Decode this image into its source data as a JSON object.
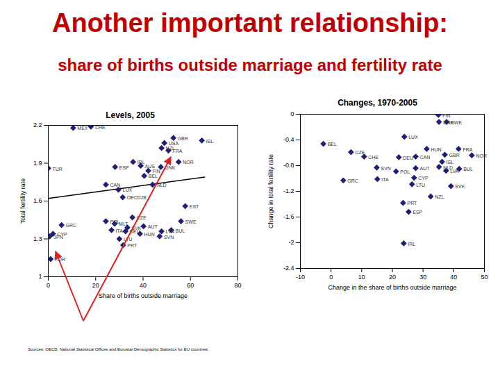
{
  "title": "Another important relationship:",
  "subtitle": "share of births outside marriage and fertility rate",
  "source": "Sources: OECD, National Statistical Offices and Eurostat Demographic Statistics for EU countries.",
  "chart_data": [
    {
      "type": "scatter",
      "title": "Levels, 2005",
      "x_label": "Share of births outside marriage",
      "y_label": "Total fertility rate",
      "labels": [
        "MEX",
        "CHE",
        "GBR",
        "USA",
        "ISL",
        "NZL",
        "FRA",
        "NOR",
        "IRL",
        "ESP",
        "AUS",
        "DNK",
        "FIN",
        "BEL",
        "NLD",
        "TUR",
        "CAN",
        "LUX",
        "OECD28",
        "EST",
        "CZE",
        "POL",
        "MLT",
        "GRC",
        "SWE",
        "AUT",
        "SVK",
        "ITA",
        "DEU",
        "BUL",
        "LVA",
        "CYP",
        "JPN",
        "HUN",
        "SVN",
        "LTU",
        "PRT",
        "KOR"
      ],
      "x": [
        10.5,
        18,
        52.8,
        49,
        64.8,
        47.8,
        50.7,
        55,
        35.8,
        28.2,
        39,
        47.5,
        42.2,
        40.5,
        44,
        0,
        24.3,
        29.6,
        31.4,
        57.8,
        35.5,
        24.3,
        28,
        5.6,
        56,
        40.2,
        33.4,
        26.7,
        32.6,
        51.9,
        47.8,
        2,
        0.6,
        38.7,
        47,
        30,
        31.6,
        1
      ],
      "y": [
        2.18,
        2.19,
        2.1,
        2.06,
        2.08,
        2.02,
        2.0,
        1.91,
        1.91,
        1.87,
        1.88,
        1.87,
        1.84,
        1.8,
        1.73,
        1.86,
        1.73,
        1.69,
        1.63,
        1.56,
        1.47,
        1.44,
        1.42,
        1.41,
        1.44,
        1.4,
        1.39,
        1.37,
        1.36,
        1.37,
        1.36,
        1.34,
        1.32,
        1.34,
        1.32,
        1.3,
        1.25,
        1.14
      ],
      "color": "#1f1f78",
      "marker": "diamond",
      "xlim": [
        0,
        80
      ],
      "xticks": [
        0,
        20,
        40,
        60,
        80
      ],
      "ylim": [
        1,
        2.2
      ],
      "yticks": [
        1,
        1.3,
        1.6,
        1.9,
        2.2
      ],
      "trend_line": {
        "x": [
          0,
          66
        ],
        "y": [
          1.62,
          1.79
        ],
        "color": "#000000"
      }
    },
    {
      "type": "scatter",
      "title": "Changes, 1970-2005",
      "x_label": "Change in the share of births outside marriage",
      "y_label": "Change in total fertility rate",
      "labels": [
        "FIN",
        "DNK",
        "SWE",
        "LUX",
        "BEL",
        "CZE",
        "CHE",
        "DEU",
        "CAN",
        "HUN",
        "FRA",
        "GBR",
        "NOR",
        "ISL",
        "NLD",
        "LVA",
        "BUL",
        "AUT",
        "SVN",
        "POL",
        "CYP",
        "LTU",
        "GRC",
        "ITA",
        "SVK",
        "NZL",
        "PRT",
        "ESP",
        "IRL"
      ],
      "x": [
        35,
        35.2,
        37.7,
        23.9,
        -2.5,
        6.5,
        10.8,
        22.1,
        27.6,
        31.2,
        41.6,
        37.1,
        45.9,
        36.2,
        35.2,
        37.5,
        41.8,
        27.6,
        14.9,
        21.2,
        27.1,
        26.4,
        4,
        15.1,
        39.1,
        32.5,
        23.5,
        25.3,
        23.7
      ],
      "y": [
        -0.01,
        -0.12,
        -0.12,
        -0.35,
        -0.46,
        -0.59,
        -0.66,
        -0.67,
        -0.66,
        -0.54,
        -0.54,
        -0.63,
        -0.64,
        -0.74,
        -0.82,
        -0.88,
        -0.85,
        -0.84,
        -0.83,
        -0.89,
        -0.99,
        -1.09,
        -1.03,
        -1.01,
        -1.12,
        -1.28,
        -1.38,
        -1.52,
        -2.01
      ],
      "color": "#1f1f78",
      "marker": "diamond",
      "xlim": [
        -10,
        50
      ],
      "xticks": [
        -10,
        0,
        10,
        20,
        30,
        40,
        50
      ],
      "ylim": [
        -2.4,
        0
      ],
      "yticks": [
        -2.4,
        -2,
        -1.6,
        -1.2,
        -0.8,
        -0.4,
        0
      ]
    }
  ]
}
